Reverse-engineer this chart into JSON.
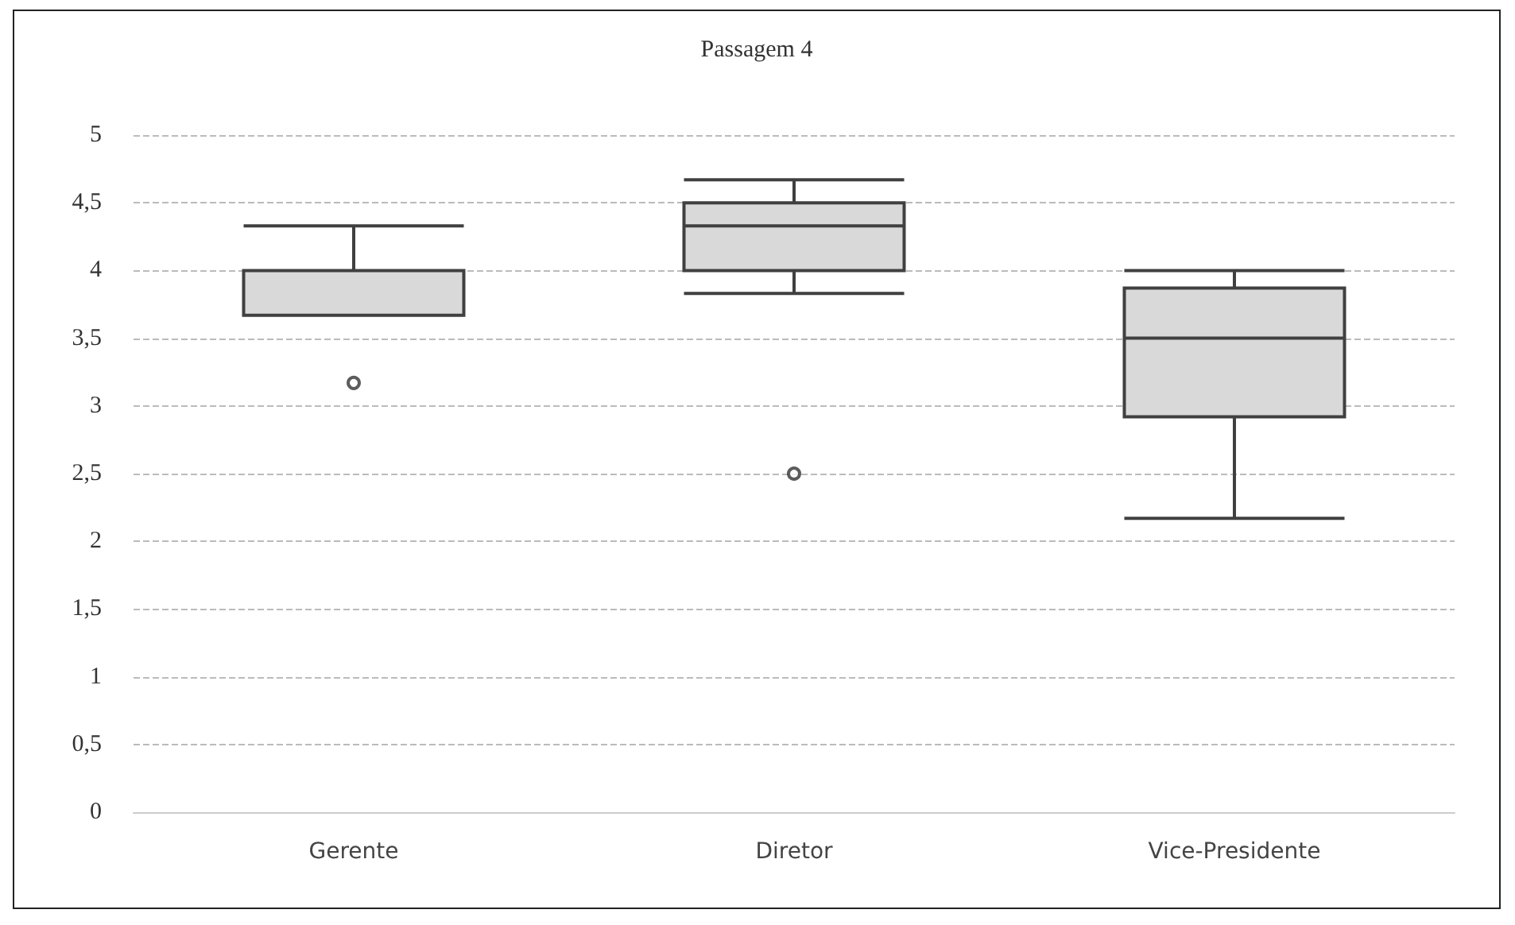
{
  "chart_data": {
    "type": "box",
    "title": "Passagem 4",
    "categories": [
      "Gerente",
      "Diretor",
      "Vice-Presidente"
    ],
    "boxes": [
      {
        "low": 3.67,
        "q1": 3.67,
        "median": 4,
        "q3": 4,
        "high": 4.33,
        "outliers": [
          3.17
        ]
      },
      {
        "low": 3.83,
        "q1": 4,
        "median": 4.33,
        "q3": 4.5,
        "high": 4.67,
        "outliers": [
          2.5
        ]
      },
      {
        "low": 2.17,
        "q1": 2.92,
        "median": 3.5,
        "q3": 3.87,
        "high": 4
      }
    ],
    "color": "#d9d9d9",
    "ylim": [
      0,
      5
    ],
    "yticks": [
      0,
      {
        "value": 0.5,
        "label": "0,5"
      },
      1,
      {
        "value": 1.5,
        "label": "1,5"
      },
      2,
      {
        "value": 2.5,
        "label": "2,5"
      },
      3,
      {
        "value": 3.5,
        "label": "3,5"
      },
      4,
      {
        "value": 4.5,
        "label": "4,5"
      },
      5
    ],
    "grid": "y"
  }
}
